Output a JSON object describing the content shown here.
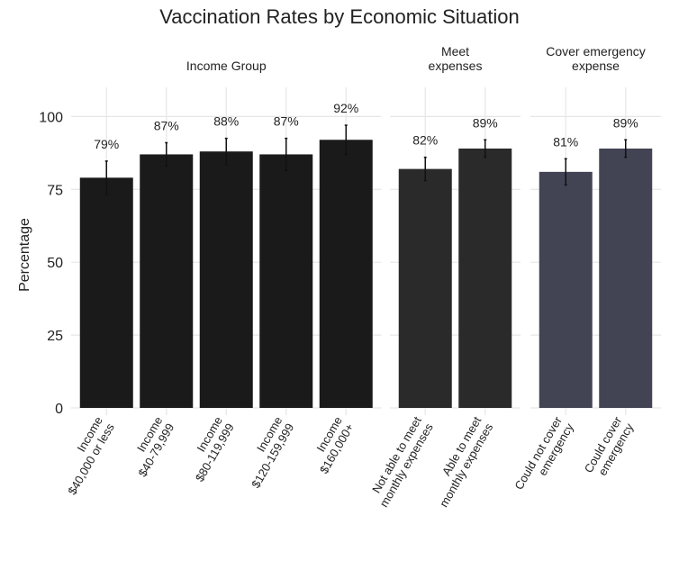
{
  "chart_data": {
    "type": "bar",
    "title": "Vaccination Rates by Economic Situation",
    "y_label": "Percentage",
    "ylim": [
      0,
      110
    ],
    "yticks": [
      0,
      25,
      50,
      75,
      100
    ],
    "grid": true,
    "facets": [
      {
        "title": [
          "Income Group"
        ],
        "color": "#1a1a1a",
        "categories": [
          [
            "Income",
            "$40,000 or less"
          ],
          [
            "Income",
            "$40-79,999"
          ],
          [
            "Income",
            "$80-119,999"
          ],
          [
            "Income",
            "$120-159,999"
          ],
          [
            "Income",
            "$160,000+"
          ]
        ],
        "values": [
          79,
          87,
          88,
          87,
          92
        ],
        "value_labels": [
          "79%",
          "87%",
          "88%",
          "87%",
          "92%"
        ],
        "errors": [
          5.7,
          4,
          4.5,
          5.5,
          5
        ]
      },
      {
        "title": [
          "Meet",
          "expenses"
        ],
        "color": "#2a2a2a",
        "categories": [
          [
            "Not able to meet",
            "monthly expenses"
          ],
          [
            "Able to meet",
            "monthly expenses"
          ]
        ],
        "values": [
          82,
          89
        ],
        "value_labels": [
          "82%",
          "89%"
        ],
        "errors": [
          4,
          3
        ]
      },
      {
        "title": [
          "Cover emergency",
          "expense"
        ],
        "color": "#424454",
        "categories": [
          [
            "Could not cover",
            "emergency"
          ],
          [
            "Could cover",
            "emergency"
          ]
        ],
        "values": [
          81,
          89
        ],
        "value_labels": [
          "81%",
          "89%"
        ],
        "errors": [
          4.5,
          3
        ]
      }
    ]
  }
}
